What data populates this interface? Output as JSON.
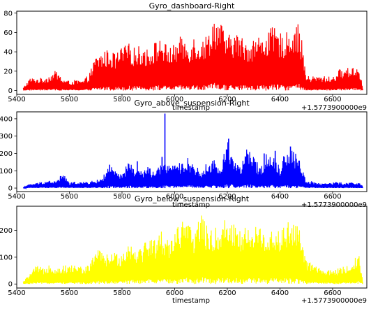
{
  "chart_data": [
    {
      "type": "line",
      "title": "Gyro_dashboard-Right",
      "xlabel": "timestamp",
      "ylabel": "",
      "offset_label": "+1.5773900000e9",
      "xlim": [
        5400,
        6730
      ],
      "ylim": [
        -4,
        82
      ],
      "xticks": [
        5400,
        5600,
        5800,
        6000,
        6200,
        6400,
        6600
      ],
      "yticks": [
        0,
        20,
        40,
        60,
        80
      ],
      "grid": false,
      "color": "#ff0000",
      "series": [
        {
          "x": [
            5425,
            5450,
            5475,
            5500,
            5525,
            5550,
            5575,
            5600,
            5625,
            5650,
            5675,
            5700,
            5725,
            5750,
            5775,
            5800,
            5825,
            5850,
            5875,
            5900,
            5925,
            5950,
            5975,
            6000,
            6025,
            6050,
            6075,
            6100,
            6125,
            6150,
            6175,
            6200,
            6225,
            6250,
            6275,
            6300,
            6325,
            6350,
            6375,
            6400,
            6425,
            6450,
            6475,
            6500,
            6525,
            6550,
            6575,
            6600,
            6625,
            6650,
            6675,
            6700,
            6715
          ],
          "y_min": [
            0,
            0,
            0,
            0,
            0,
            0,
            0,
            0,
            0,
            0,
            0,
            0,
            0,
            0,
            0,
            0,
            0,
            0,
            0,
            0,
            0,
            0,
            0,
            0,
            0,
            0,
            0,
            0,
            0,
            0,
            0,
            0,
            0,
            0,
            0,
            0,
            0,
            0,
            0,
            0,
            0,
            0,
            0,
            0,
            0,
            0,
            0,
            0,
            0,
            0,
            0,
            0,
            0
          ],
          "y_max": [
            3,
            13,
            13,
            13,
            16,
            21,
            12,
            10,
            11,
            10,
            17,
            36,
            40,
            43,
            38,
            45,
            49,
            45,
            47,
            43,
            51,
            55,
            45,
            48,
            57,
            50,
            58,
            52,
            59,
            78,
            71,
            56,
            62,
            57,
            52,
            55,
            57,
            62,
            66,
            60,
            60,
            68,
            69,
            15,
            15,
            15,
            15,
            14,
            22,
            23,
            25,
            25,
            3
          ]
        }
      ]
    },
    {
      "type": "line",
      "title": "Gyro_above_suspension-Right",
      "xlabel": "timestamp",
      "ylabel": "",
      "offset_label": "+1.5773900000e9",
      "xlim": [
        5400,
        6730
      ],
      "ylim": [
        -20,
        440
      ],
      "xticks": [
        5400,
        5600,
        5800,
        6000,
        6200,
        6400,
        6600
      ],
      "yticks": [
        0,
        100,
        200,
        300,
        400
      ],
      "grid": false,
      "color": "#0000ff",
      "series": [
        {
          "x": [
            5425,
            5450,
            5475,
            5500,
            5525,
            5550,
            5575,
            5600,
            5625,
            5650,
            5675,
            5700,
            5725,
            5750,
            5775,
            5800,
            5825,
            5850,
            5875,
            5900,
            5925,
            5950,
            5975,
            6000,
            6025,
            6050,
            6075,
            6100,
            6125,
            6150,
            6175,
            6200,
            6225,
            6250,
            6275,
            6300,
            6325,
            6350,
            6375,
            6400,
            6425,
            6450,
            6475,
            6500,
            6525,
            6550,
            6575,
            6600,
            6625,
            6650,
            6675,
            6700,
            6715
          ],
          "y_min": [
            0,
            0,
            0,
            0,
            0,
            0,
            0,
            0,
            0,
            0,
            0,
            0,
            0,
            0,
            0,
            0,
            0,
            0,
            0,
            0,
            0,
            0,
            0,
            0,
            0,
            0,
            0,
            0,
            0,
            0,
            0,
            0,
            0,
            0,
            0,
            0,
            0,
            0,
            0,
            0,
            0,
            0,
            0,
            0,
            0,
            0,
            0,
            0,
            0,
            0,
            0,
            0,
            0
          ],
          "y_max": [
            5,
            25,
            30,
            40,
            45,
            40,
            90,
            30,
            40,
            35,
            40,
            45,
            60,
            135,
            100,
            75,
            160,
            110,
            100,
            125,
            95,
            140,
            160,
            130,
            150,
            175,
            145,
            90,
            155,
            165,
            115,
            290,
            175,
            130,
            235,
            180,
            125,
            205,
            200,
            130,
            230,
            220,
            170,
            40,
            40,
            30,
            30,
            35,
            35,
            30,
            35,
            35,
            10
          ]
        }
      ],
      "spikes": [
        {
          "x": 5753,
          "y": 135
        },
        {
          "x": 5858,
          "y": 155
        },
        {
          "x": 5952,
          "y": 180
        },
        {
          "x": 5963,
          "y": 430
        },
        {
          "x": 6205,
          "y": 285
        },
        {
          "x": 6340,
          "y": 200
        },
        {
          "x": 6382,
          "y": 215
        },
        {
          "x": 6440,
          "y": 240
        },
        {
          "x": 6462,
          "y": 170
        }
      ]
    },
    {
      "type": "line",
      "title": "Gyro_below_suspension-Right",
      "xlabel": "timestamp",
      "ylabel": "",
      "offset_label": "+1.5773900000e9",
      "xlim": [
        5400,
        6730
      ],
      "ylim": [
        -15,
        290
      ],
      "xticks": [
        5400,
        5600,
        5800,
        6000,
        6200,
        6400,
        6600
      ],
      "yticks": [
        0,
        100,
        200
      ],
      "grid": false,
      "color": "#ffff00",
      "series": [
        {
          "x": [
            5425,
            5450,
            5475,
            5500,
            5525,
            5550,
            5575,
            5600,
            5625,
            5650,
            5675,
            5700,
            5725,
            5750,
            5775,
            5800,
            5825,
            5850,
            5875,
            5900,
            5925,
            5950,
            5975,
            6000,
            6025,
            6050,
            6075,
            6100,
            6125,
            6150,
            6175,
            6200,
            6225,
            6250,
            6275,
            6300,
            6325,
            6350,
            6375,
            6400,
            6425,
            6450,
            6475,
            6500,
            6525,
            6550,
            6575,
            6600,
            6625,
            6650,
            6675,
            6700,
            6715
          ],
          "y_min": [
            0,
            0,
            0,
            0,
            0,
            0,
            0,
            0,
            0,
            0,
            0,
            0,
            0,
            0,
            0,
            0,
            0,
            0,
            0,
            0,
            0,
            0,
            0,
            0,
            0,
            0,
            0,
            0,
            0,
            0,
            0,
            0,
            0,
            0,
            0,
            0,
            0,
            0,
            0,
            0,
            0,
            0,
            0,
            0,
            0,
            0,
            0,
            0,
            0,
            0,
            0,
            0,
            0
          ],
          "y_max": [
            10,
            40,
            70,
            60,
            80,
            60,
            70,
            70,
            75,
            65,
            70,
            140,
            120,
            110,
            120,
            120,
            160,
            145,
            140,
            185,
            170,
            200,
            170,
            210,
            240,
            230,
            200,
            280,
            210,
            205,
            230,
            255,
            240,
            200,
            220,
            230,
            210,
            200,
            220,
            200,
            230,
            250,
            200,
            90,
            80,
            60,
            55,
            50,
            60,
            70,
            80,
            120,
            10
          ]
        }
      ]
    }
  ]
}
